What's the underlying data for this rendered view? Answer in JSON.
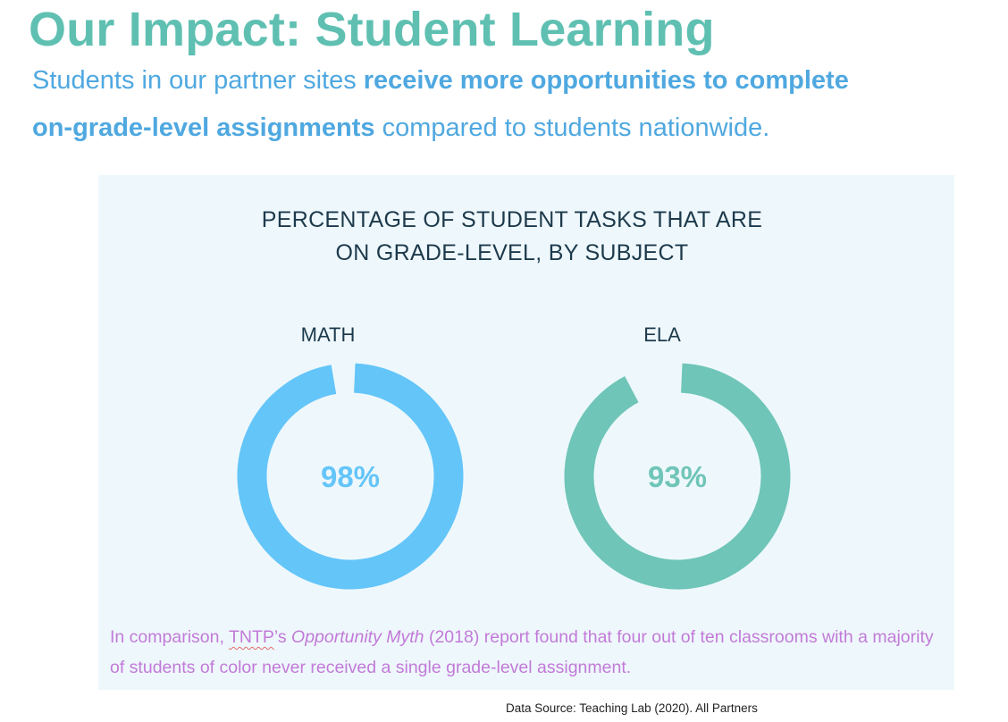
{
  "header": {
    "title": "Our Impact: Student Learning",
    "subtitle_part1": "Students in our partner sites ",
    "subtitle_bold1": "receive more opportunities to complete",
    "subtitle_bold2": "on-grade-level assignments",
    "subtitle_part2": " compared to students nationwide."
  },
  "chart_data": {
    "type": "pie",
    "title_line1": "PERCENTAGE OF STUDENT TASKS THAT ARE",
    "title_line2": "ON GRADE-LEVEL, BY SUBJECT",
    "series": [
      {
        "name": "MATH",
        "value": 98,
        "label": "98%",
        "color": "#64c5f9"
      },
      {
        "name": "ELA",
        "value": 93,
        "label": "93%",
        "color": "#6fc5b8"
      }
    ]
  },
  "note": {
    "prefix": "In comparison, ",
    "tntp": "TNTP",
    "possessive": "’s ",
    "report": "Opportunity Myth",
    "rest": " (2018) report found that four out of ten classrooms with a majority of students of color never received a single grade-level assignment."
  },
  "source": "Data Source: Teaching Lab (2020). All Partners"
}
